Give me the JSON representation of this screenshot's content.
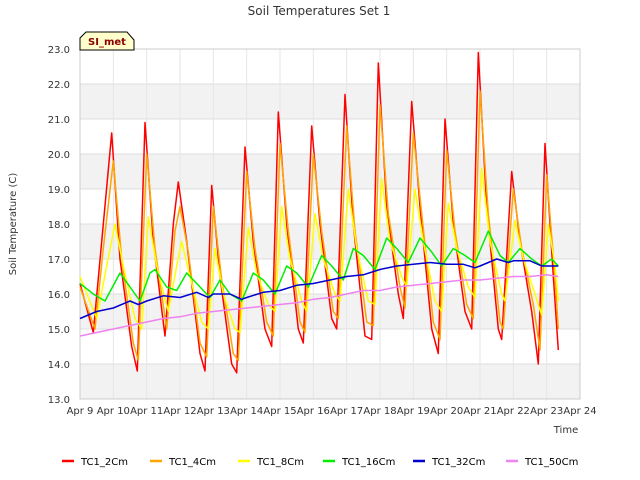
{
  "chart_data": {
    "type": "line",
    "title": "Soil Temperatures Set 1",
    "xlabel": "Time",
    "ylabel": "Soil Temperature (C)",
    "badge": "SI_met",
    "ylim": [
      13.0,
      23.0
    ],
    "xlim": [
      "2013-04-09",
      "2013-04-24"
    ],
    "yticks": [
      "13.0",
      "14.0",
      "15.0",
      "16.0",
      "17.0",
      "18.0",
      "19.0",
      "20.0",
      "21.0",
      "22.0",
      "23.0"
    ],
    "xticks": [
      "Apr 9",
      "Apr 10",
      "Apr 11",
      "Apr 12",
      "Apr 13",
      "Apr 14",
      "Apr 15",
      "Apr 16",
      "Apr 17",
      "Apr 18",
      "Apr 19",
      "Apr 20",
      "Apr 21",
      "Apr 22",
      "Apr 23",
      "Apr 24"
    ],
    "grid": true,
    "legend_position": "bottom",
    "colors": {
      "TC1_2Cm": "#ff0000",
      "TC1_4Cm": "#ffa500",
      "TC1_8Cm": "#ffff00",
      "TC1_16Cm": "#00ee00",
      "TC1_32Cm": "#0000cc",
      "TC1_50Cm": "#ee82ee"
    },
    "series": [
      {
        "name": "TC1_2Cm",
        "points": [
          [
            9.0,
            16.3
          ],
          [
            9.4,
            14.9
          ],
          [
            9.65,
            17.5
          ],
          [
            9.95,
            20.6
          ],
          [
            10.2,
            17.0
          ],
          [
            10.55,
            14.5
          ],
          [
            10.72,
            13.8
          ],
          [
            10.95,
            20.9
          ],
          [
            11.2,
            17.5
          ],
          [
            11.55,
            14.8
          ],
          [
            11.8,
            18.0
          ],
          [
            11.95,
            19.2
          ],
          [
            12.2,
            17.5
          ],
          [
            12.6,
            14.3
          ],
          [
            12.75,
            13.8
          ],
          [
            12.95,
            19.1
          ],
          [
            13.2,
            16.5
          ],
          [
            13.55,
            14.0
          ],
          [
            13.7,
            13.75
          ],
          [
            13.95,
            20.2
          ],
          [
            14.2,
            17.5
          ],
          [
            14.55,
            15.0
          ],
          [
            14.75,
            14.5
          ],
          [
            14.95,
            21.2
          ],
          [
            15.2,
            18.0
          ],
          [
            15.55,
            15.0
          ],
          [
            15.7,
            14.6
          ],
          [
            15.95,
            20.8
          ],
          [
            16.2,
            18.0
          ],
          [
            16.55,
            15.3
          ],
          [
            16.7,
            15.0
          ],
          [
            16.95,
            21.7
          ],
          [
            17.2,
            18.0
          ],
          [
            17.55,
            14.8
          ],
          [
            17.75,
            14.7
          ],
          [
            17.95,
            22.6
          ],
          [
            18.2,
            18.5
          ],
          [
            18.55,
            16.0
          ],
          [
            18.7,
            15.3
          ],
          [
            18.95,
            21.5
          ],
          [
            19.2,
            18.5
          ],
          [
            19.55,
            15.0
          ],
          [
            19.75,
            14.3
          ],
          [
            19.95,
            21.0
          ],
          [
            20.2,
            18.0
          ],
          [
            20.55,
            15.5
          ],
          [
            20.75,
            15.0
          ],
          [
            20.95,
            22.9
          ],
          [
            21.2,
            18.5
          ],
          [
            21.55,
            15.0
          ],
          [
            21.65,
            14.7
          ],
          [
            21.95,
            19.5
          ],
          [
            22.2,
            17.5
          ],
          [
            22.55,
            15.5
          ],
          [
            22.75,
            14.0
          ],
          [
            22.95,
            20.3
          ],
          [
            23.2,
            16.5
          ],
          [
            23.35,
            14.4
          ]
        ]
      },
      {
        "name": "TC1_4Cm",
        "points": [
          [
            9.0,
            16.2
          ],
          [
            9.45,
            15.0
          ],
          [
            9.7,
            17.3
          ],
          [
            10.0,
            19.8
          ],
          [
            10.25,
            17.0
          ],
          [
            10.6,
            14.6
          ],
          [
            10.75,
            14.1
          ],
          [
            11.0,
            20.0
          ],
          [
            11.25,
            17.3
          ],
          [
            11.6,
            15.0
          ],
          [
            11.85,
            17.8
          ],
          [
            12.0,
            18.5
          ],
          [
            12.25,
            17.2
          ],
          [
            12.6,
            14.6
          ],
          [
            12.8,
            14.2
          ],
          [
            13.0,
            18.5
          ],
          [
            13.25,
            16.4
          ],
          [
            13.6,
            14.3
          ],
          [
            13.75,
            14.1
          ],
          [
            14.0,
            19.5
          ],
          [
            14.25,
            17.3
          ],
          [
            14.6,
            15.2
          ],
          [
            14.8,
            14.8
          ],
          [
            15.0,
            20.3
          ],
          [
            15.25,
            17.8
          ],
          [
            15.6,
            15.2
          ],
          [
            15.75,
            14.9
          ],
          [
            16.0,
            20.0
          ],
          [
            16.25,
            17.8
          ],
          [
            16.6,
            15.5
          ],
          [
            16.75,
            15.3
          ],
          [
            17.0,
            20.8
          ],
          [
            17.25,
            17.8
          ],
          [
            17.6,
            15.2
          ],
          [
            17.8,
            15.1
          ],
          [
            18.0,
            21.4
          ],
          [
            18.25,
            18.3
          ],
          [
            18.6,
            16.2
          ],
          [
            18.75,
            15.6
          ],
          [
            19.0,
            20.6
          ],
          [
            19.25,
            18.3
          ],
          [
            19.6,
            15.2
          ],
          [
            19.8,
            14.7
          ],
          [
            20.0,
            20.1
          ],
          [
            20.25,
            17.8
          ],
          [
            20.6,
            15.7
          ],
          [
            20.8,
            15.3
          ],
          [
            21.0,
            21.8
          ],
          [
            21.25,
            18.3
          ],
          [
            21.6,
            15.2
          ],
          [
            21.7,
            15.0
          ],
          [
            22.0,
            19.0
          ],
          [
            22.25,
            17.3
          ],
          [
            22.6,
            15.7
          ],
          [
            22.8,
            14.4
          ],
          [
            23.0,
            19.4
          ],
          [
            23.25,
            16.5
          ],
          [
            23.35,
            15.0
          ]
        ]
      },
      {
        "name": "TC1_8Cm",
        "points": [
          [
            9.0,
            16.5
          ],
          [
            9.5,
            15.3
          ],
          [
            9.8,
            16.8
          ],
          [
            10.05,
            18.0
          ],
          [
            10.3,
            16.8
          ],
          [
            10.65,
            15.3
          ],
          [
            10.85,
            15.0
          ],
          [
            11.05,
            18.2
          ],
          [
            11.3,
            16.8
          ],
          [
            11.65,
            15.5
          ],
          [
            11.9,
            16.8
          ],
          [
            12.05,
            17.5
          ],
          [
            12.3,
            16.5
          ],
          [
            12.65,
            15.2
          ],
          [
            12.85,
            15.0
          ],
          [
            13.05,
            17.3
          ],
          [
            13.3,
            16.0
          ],
          [
            13.65,
            15.0
          ],
          [
            13.8,
            14.9
          ],
          [
            14.05,
            17.9
          ],
          [
            14.3,
            16.6
          ],
          [
            14.65,
            15.7
          ],
          [
            14.85,
            15.5
          ],
          [
            15.05,
            18.5
          ],
          [
            15.3,
            17.0
          ],
          [
            15.65,
            15.8
          ],
          [
            15.8,
            15.5
          ],
          [
            16.05,
            18.3
          ],
          [
            16.3,
            17.0
          ],
          [
            16.65,
            16.0
          ],
          [
            16.8,
            15.8
          ],
          [
            17.05,
            19.0
          ],
          [
            17.3,
            17.3
          ],
          [
            17.65,
            15.8
          ],
          [
            17.85,
            15.7
          ],
          [
            18.05,
            19.3
          ],
          [
            18.3,
            17.5
          ],
          [
            18.65,
            16.5
          ],
          [
            18.8,
            16.2
          ],
          [
            19.05,
            19.0
          ],
          [
            19.3,
            17.5
          ],
          [
            19.65,
            15.8
          ],
          [
            19.85,
            15.5
          ],
          [
            20.05,
            18.6
          ],
          [
            20.3,
            17.3
          ],
          [
            20.65,
            16.2
          ],
          [
            20.85,
            15.9
          ],
          [
            21.05,
            19.6
          ],
          [
            21.3,
            17.5
          ],
          [
            21.65,
            16.0
          ],
          [
            21.75,
            15.8
          ],
          [
            22.05,
            18.1
          ],
          [
            22.3,
            17.0
          ],
          [
            22.65,
            16.0
          ],
          [
            22.85,
            15.4
          ],
          [
            23.05,
            18.0
          ],
          [
            23.25,
            16.8
          ],
          [
            23.35,
            15.8
          ]
        ]
      },
      {
        "name": "TC1_16Cm",
        "points": [
          [
            9.0,
            16.3
          ],
          [
            9.4,
            16.0
          ],
          [
            9.75,
            15.8
          ],
          [
            10.2,
            16.6
          ],
          [
            10.5,
            16.2
          ],
          [
            10.8,
            15.8
          ],
          [
            11.1,
            16.6
          ],
          [
            11.25,
            16.7
          ],
          [
            11.6,
            16.2
          ],
          [
            11.9,
            16.1
          ],
          [
            12.2,
            16.6
          ],
          [
            12.5,
            16.3
          ],
          [
            12.9,
            15.9
          ],
          [
            13.2,
            16.4
          ],
          [
            13.5,
            16.0
          ],
          [
            13.85,
            15.8
          ],
          [
            14.2,
            16.6
          ],
          [
            14.5,
            16.4
          ],
          [
            14.85,
            16.0
          ],
          [
            15.2,
            16.8
          ],
          [
            15.5,
            16.6
          ],
          [
            15.85,
            16.2
          ],
          [
            16.25,
            17.1
          ],
          [
            16.55,
            16.8
          ],
          [
            16.9,
            16.4
          ],
          [
            17.2,
            17.3
          ],
          [
            17.5,
            17.1
          ],
          [
            17.85,
            16.7
          ],
          [
            18.2,
            17.6
          ],
          [
            18.5,
            17.3
          ],
          [
            18.85,
            16.9
          ],
          [
            19.2,
            17.6
          ],
          [
            19.55,
            17.2
          ],
          [
            19.85,
            16.8
          ],
          [
            20.2,
            17.3
          ],
          [
            20.55,
            17.1
          ],
          [
            20.85,
            16.9
          ],
          [
            21.25,
            17.8
          ],
          [
            21.6,
            17.1
          ],
          [
            21.85,
            16.9
          ],
          [
            22.2,
            17.3
          ],
          [
            22.55,
            17.0
          ],
          [
            22.85,
            16.8
          ],
          [
            23.15,
            17.0
          ],
          [
            23.35,
            16.8
          ]
        ]
      },
      {
        "name": "TC1_32Cm",
        "points": [
          [
            9.0,
            15.3
          ],
          [
            9.5,
            15.5
          ],
          [
            10.0,
            15.6
          ],
          [
            10.5,
            15.8
          ],
          [
            10.75,
            15.7
          ],
          [
            11.0,
            15.8
          ],
          [
            11.5,
            15.95
          ],
          [
            12.0,
            15.9
          ],
          [
            12.5,
            16.05
          ],
          [
            12.85,
            15.9
          ],
          [
            13.0,
            16.0
          ],
          [
            13.5,
            16.0
          ],
          [
            13.85,
            15.85
          ],
          [
            14.0,
            15.9
          ],
          [
            14.5,
            16.05
          ],
          [
            15.0,
            16.1
          ],
          [
            15.5,
            16.25
          ],
          [
            16.0,
            16.3
          ],
          [
            16.5,
            16.4
          ],
          [
            17.0,
            16.5
          ],
          [
            17.5,
            16.55
          ],
          [
            18.0,
            16.7
          ],
          [
            18.5,
            16.8
          ],
          [
            19.0,
            16.85
          ],
          [
            19.5,
            16.9
          ],
          [
            20.0,
            16.85
          ],
          [
            20.5,
            16.85
          ],
          [
            20.85,
            16.75
          ],
          [
            21.0,
            16.8
          ],
          [
            21.5,
            17.0
          ],
          [
            21.85,
            16.9
          ],
          [
            22.0,
            16.95
          ],
          [
            22.5,
            16.95
          ],
          [
            22.85,
            16.8
          ],
          [
            23.35,
            16.8
          ]
        ]
      },
      {
        "name": "TC1_50Cm",
        "points": [
          [
            9.0,
            14.8
          ],
          [
            9.5,
            14.9
          ],
          [
            10.0,
            15.0
          ],
          [
            10.5,
            15.1
          ],
          [
            11.0,
            15.2
          ],
          [
            11.5,
            15.3
          ],
          [
            12.0,
            15.35
          ],
          [
            12.5,
            15.45
          ],
          [
            13.0,
            15.5
          ],
          [
            13.5,
            15.55
          ],
          [
            14.0,
            15.6
          ],
          [
            14.5,
            15.65
          ],
          [
            15.0,
            15.7
          ],
          [
            15.5,
            15.75
          ],
          [
            16.0,
            15.85
          ],
          [
            16.5,
            15.9
          ],
          [
            17.0,
            16.0
          ],
          [
            17.5,
            16.1
          ],
          [
            18.0,
            16.1
          ],
          [
            18.5,
            16.2
          ],
          [
            19.0,
            16.25
          ],
          [
            19.5,
            16.3
          ],
          [
            20.0,
            16.35
          ],
          [
            20.5,
            16.4
          ],
          [
            21.0,
            16.4
          ],
          [
            21.5,
            16.45
          ],
          [
            22.0,
            16.5
          ],
          [
            22.5,
            16.5
          ],
          [
            23.0,
            16.55
          ],
          [
            23.35,
            16.5
          ]
        ]
      }
    ]
  }
}
